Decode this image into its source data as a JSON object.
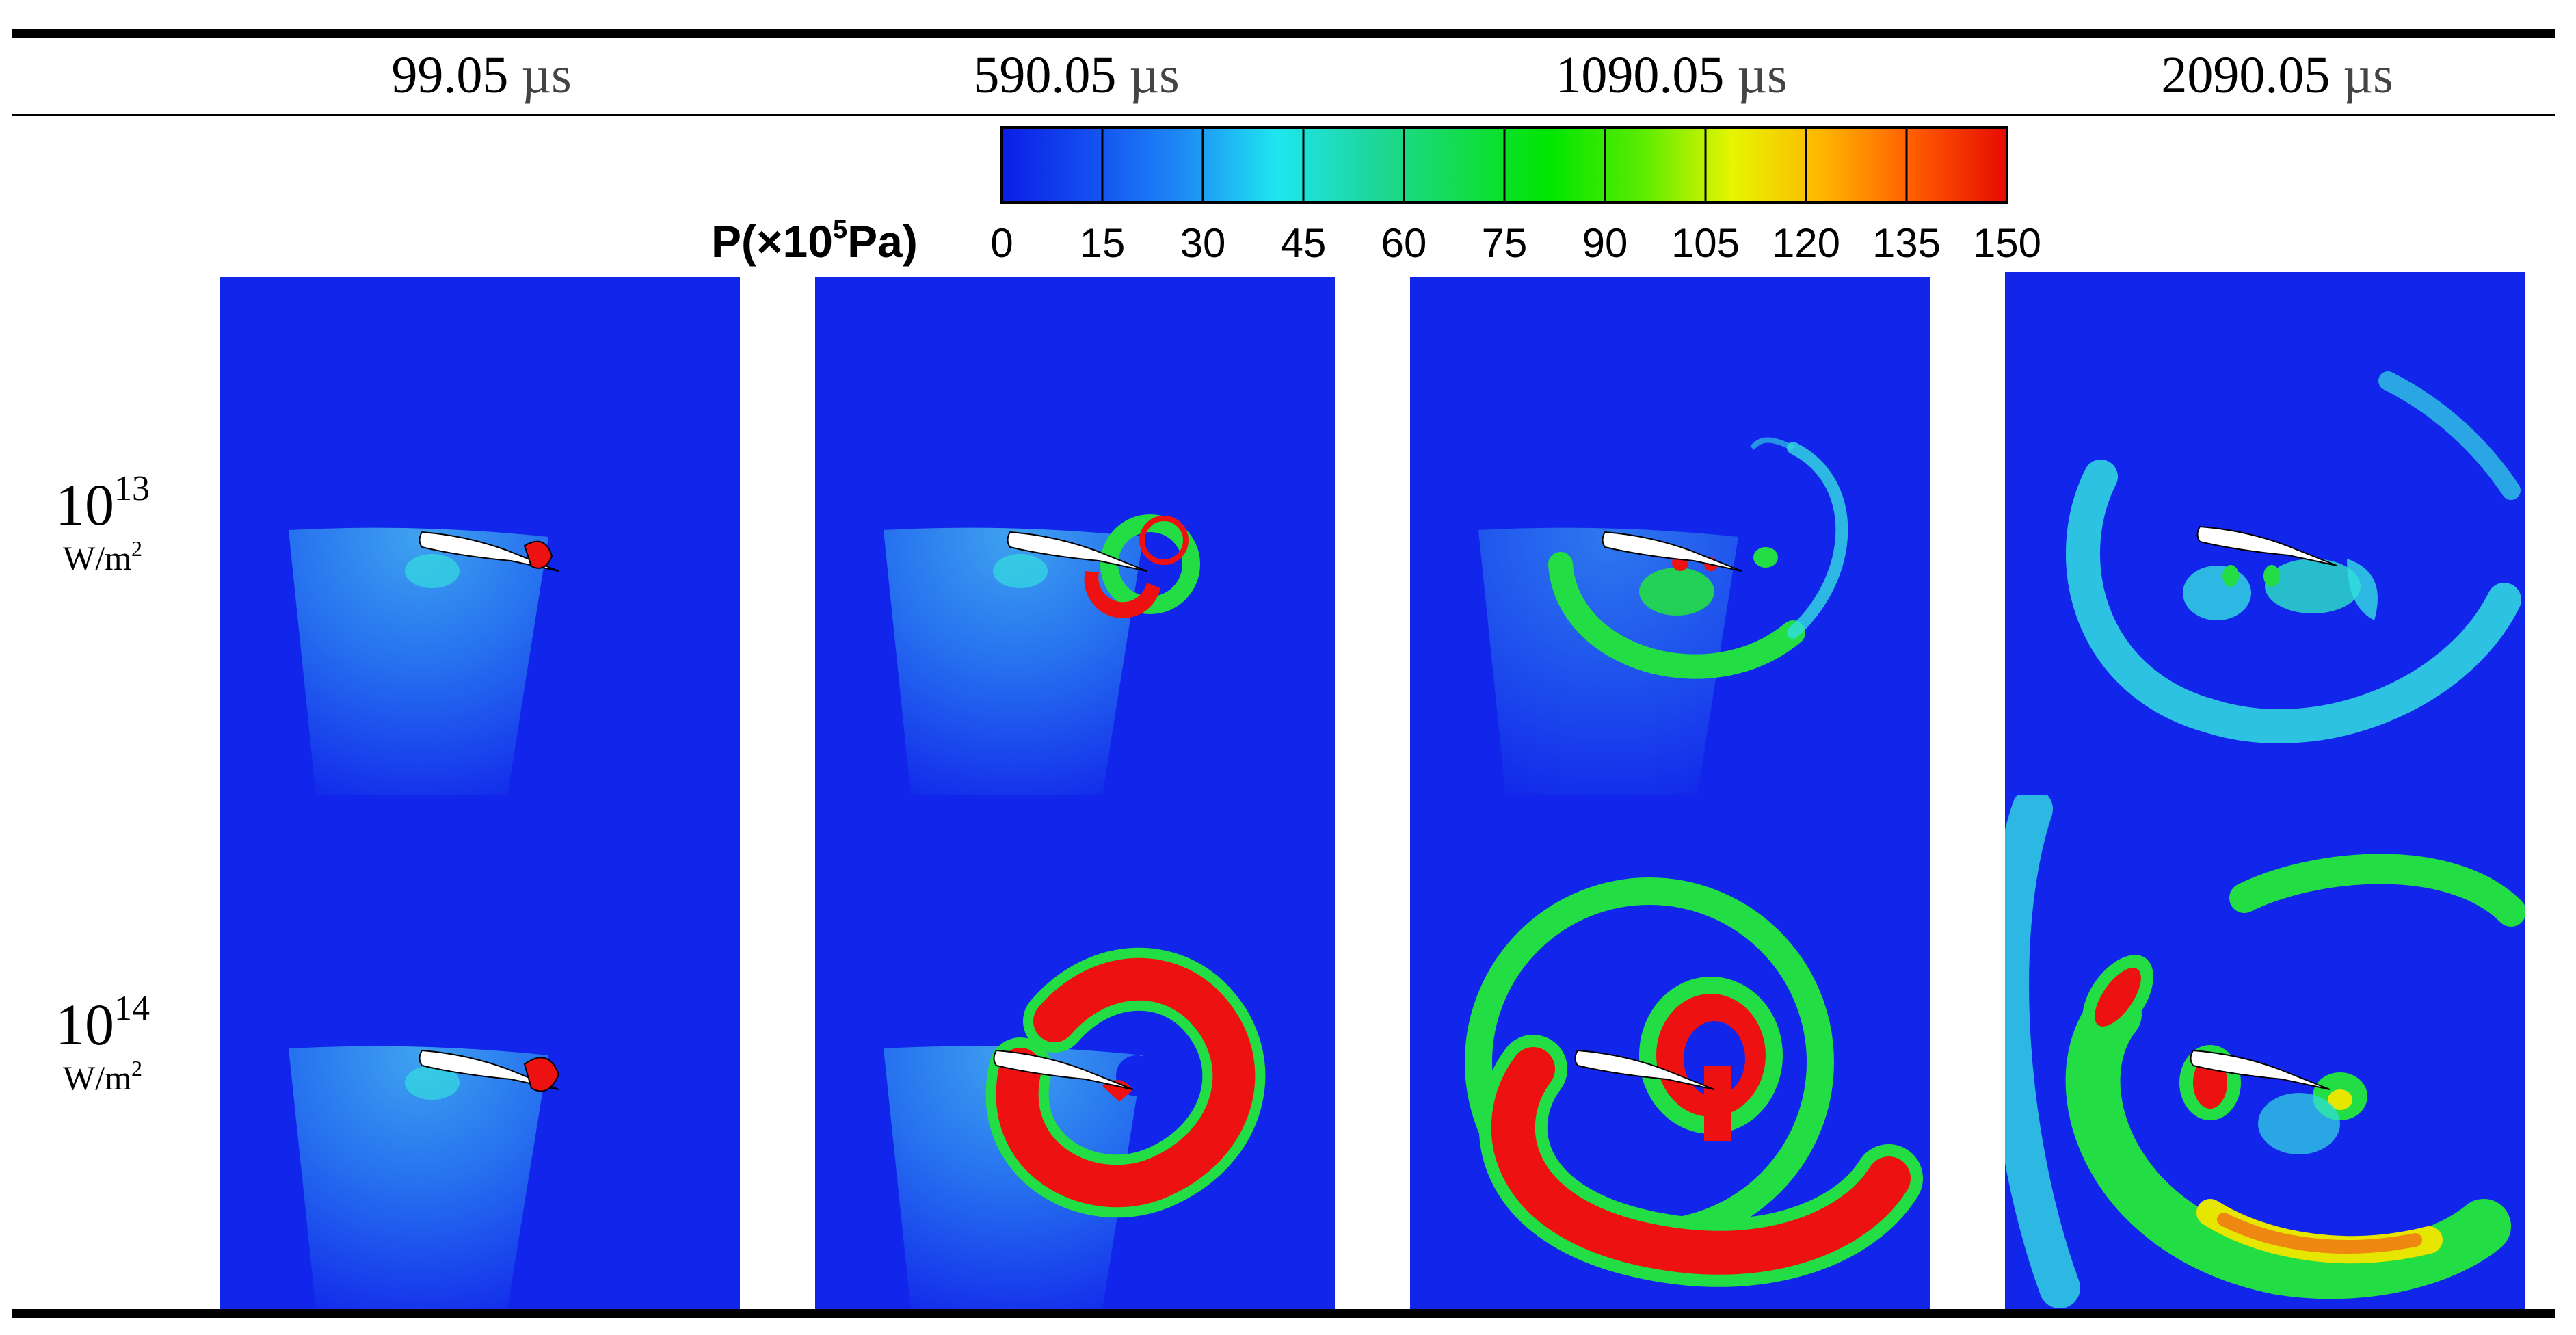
{
  "columns": [
    {
      "value": "99.05",
      "unit": "µs"
    },
    {
      "value": "590.05",
      "unit": "µs"
    },
    {
      "value": "1090.05",
      "unit": "µs"
    },
    {
      "value": "2090.05",
      "unit": "µs"
    }
  ],
  "rows": [
    {
      "base": "10",
      "exp": "13",
      "unit_base": "W/m",
      "unit_exp": "2"
    },
    {
      "base": "10",
      "exp": "14",
      "unit_base": "W/m",
      "unit_exp": "2"
    }
  ],
  "colorbar": {
    "title_prefix": "P(×10",
    "title_exp": "5",
    "title_suffix": "Pa)",
    "ticks": [
      "0",
      "15",
      "30",
      "45",
      "60",
      "75",
      "90",
      "105",
      "120",
      "135",
      "150"
    ],
    "min": 0,
    "max": 150,
    "stops": [
      "#0a1ee6",
      "#1450f0",
      "#1e8cf5",
      "#1ee6f0",
      "#1ed7a0",
      "#14dc50",
      "#00e600",
      "#5aeb00",
      "#e6f500",
      "#ffb400",
      "#ff5a00",
      "#e60a00"
    ]
  },
  "colors": {
    "background": "#1126ea",
    "shock_red": "#ee1111",
    "shock_green": "#22dd44",
    "shock_cyan": "#33dde0",
    "shock_yellow": "#e6e600",
    "airfoil": "#ffffff"
  }
}
